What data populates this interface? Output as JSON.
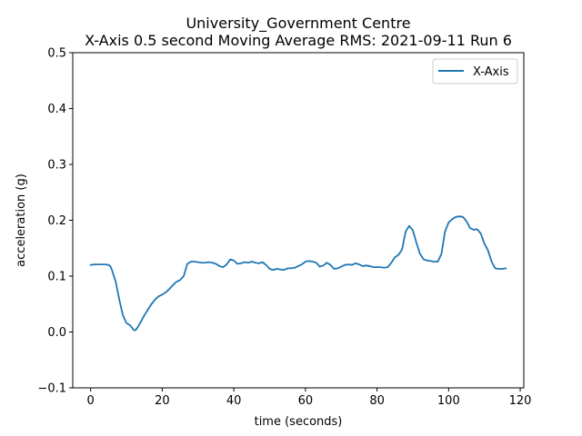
{
  "chart_data": {
    "type": "line",
    "title": "University_Government Centre",
    "subtitle": "X-Axis 0.5 second Moving Average RMS: 2021-09-11 Run 6",
    "xlabel": "time (seconds)",
    "ylabel": "acceleration (g)",
    "xlim": [
      -5,
      121
    ],
    "ylim": [
      -0.1,
      0.5
    ],
    "xticks": [
      0,
      20,
      40,
      60,
      80,
      100,
      120
    ],
    "yticks": [
      -0.1,
      0.0,
      0.1,
      0.2,
      0.3,
      0.4,
      0.5
    ],
    "xtick_labels": [
      "0",
      "20",
      "40",
      "60",
      "80",
      "100",
      "120"
    ],
    "ytick_labels": [
      "−0.1",
      "0.0",
      "0.1",
      "0.2",
      "0.3",
      "0.4",
      "0.5"
    ],
    "grid": false,
    "legend_position": "top-right",
    "series": [
      {
        "name": "X-Axis",
        "color": "#1f77b4",
        "x": [
          0,
          1,
          2,
          3,
          4,
          5,
          5.5,
          6,
          7,
          8,
          9,
          10,
          11,
          12,
          12.5,
          13,
          14,
          15,
          16,
          17,
          18,
          19,
          20,
          21,
          22,
          23,
          24,
          25,
          26,
          27,
          28,
          29,
          30,
          31,
          32,
          33,
          34,
          35,
          36,
          37,
          38,
          39,
          40,
          41,
          42,
          43,
          44,
          45,
          46,
          47,
          48,
          49,
          50,
          51,
          52,
          53,
          54,
          55,
          56,
          57,
          58,
          59,
          60,
          61,
          62,
          63,
          64,
          65,
          66,
          67,
          68,
          69,
          70,
          71,
          72,
          73,
          74,
          75,
          76,
          77,
          78,
          79,
          80,
          81,
          82,
          83,
          84,
          85,
          86,
          87,
          88,
          89,
          90,
          91,
          92,
          93,
          94,
          95,
          96,
          97,
          98,
          99,
          100,
          101,
          102,
          103,
          104,
          105,
          106,
          107,
          108,
          109,
          110,
          111,
          112,
          113,
          114,
          115,
          116
        ],
        "values": [
          0.12,
          0.121,
          0.121,
          0.121,
          0.121,
          0.12,
          0.118,
          0.11,
          0.09,
          0.058,
          0.03,
          0.016,
          0.012,
          0.004,
          0.003,
          0.007,
          0.018,
          0.03,
          0.04,
          0.05,
          0.058,
          0.064,
          0.067,
          0.071,
          0.077,
          0.084,
          0.09,
          0.093,
          0.1,
          0.122,
          0.126,
          0.126,
          0.125,
          0.124,
          0.124,
          0.125,
          0.124,
          0.122,
          0.118,
          0.116,
          0.121,
          0.13,
          0.128,
          0.122,
          0.123,
          0.125,
          0.124,
          0.126,
          0.124,
          0.123,
          0.125,
          0.12,
          0.113,
          0.111,
          0.113,
          0.112,
          0.111,
          0.114,
          0.114,
          0.115,
          0.118,
          0.121,
          0.126,
          0.127,
          0.126,
          0.124,
          0.117,
          0.119,
          0.124,
          0.12,
          0.113,
          0.114,
          0.117,
          0.12,
          0.121,
          0.12,
          0.123,
          0.121,
          0.118,
          0.119,
          0.118,
          0.116,
          0.116,
          0.116,
          0.115,
          0.116,
          0.124,
          0.134,
          0.138,
          0.148,
          0.18,
          0.19,
          0.182,
          0.16,
          0.14,
          0.13,
          0.128,
          0.127,
          0.126,
          0.126,
          0.14,
          0.18,
          0.196,
          0.202,
          0.206,
          0.207,
          0.206,
          0.198,
          0.186,
          0.183,
          0.184,
          0.176,
          0.158,
          0.146,
          0.126,
          0.114,
          0.113,
          0.113,
          0.114
        ]
      }
    ]
  }
}
